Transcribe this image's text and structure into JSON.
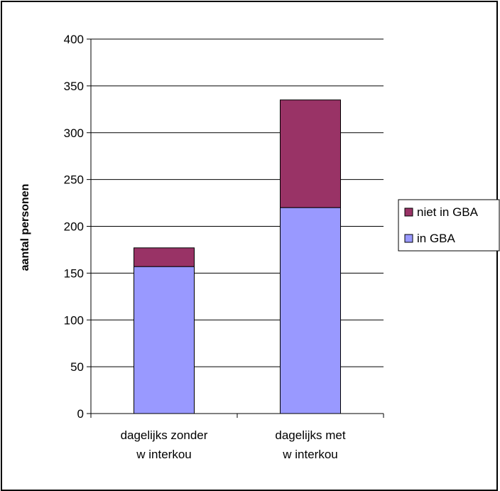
{
  "chart_data": {
    "type": "bar",
    "stacked": true,
    "title": "",
    "xlabel": "",
    "ylabel": "aantal personen",
    "ylim": [
      0,
      400
    ],
    "yticks": [
      0,
      50,
      100,
      150,
      200,
      250,
      300,
      350,
      400
    ],
    "grid": true,
    "legend_position": "right",
    "categories": [
      [
        "dagelijks zonder",
        "w interkou"
      ],
      [
        "dagelijks met",
        "w interkou"
      ]
    ],
    "series": [
      {
        "name": "in GBA",
        "color": "#9999ff",
        "values": [
          157,
          220
        ]
      },
      {
        "name": "niet in GBA",
        "color": "#993366",
        "values": [
          20,
          115
        ]
      }
    ],
    "legend_order": [
      "niet in GBA",
      "in GBA"
    ]
  }
}
